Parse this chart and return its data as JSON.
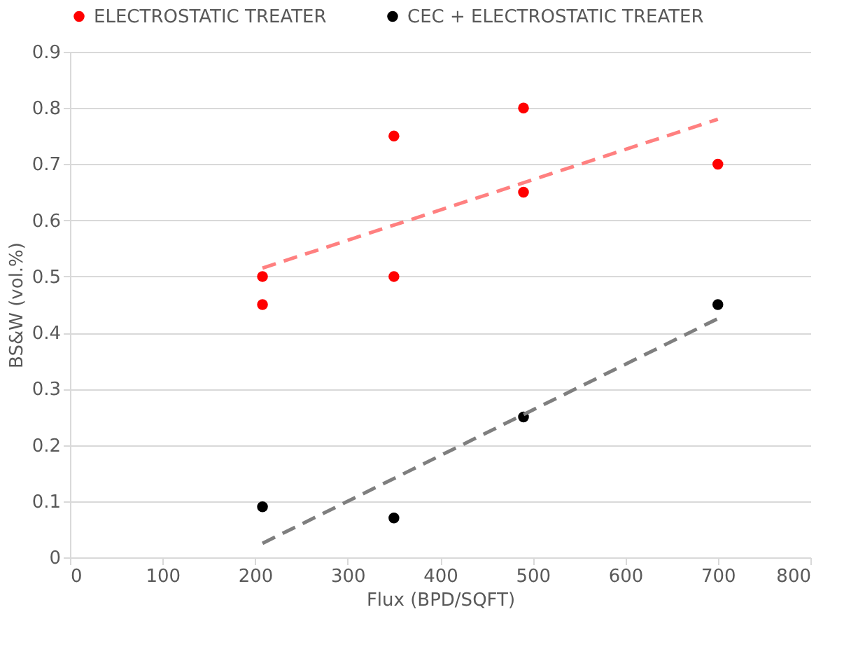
{
  "chart_data": {
    "type": "scatter",
    "xlabel": "Flux (BPD/SQFT)",
    "ylabel": "BS&W (vol.%)",
    "xlim": [
      0,
      800
    ],
    "xticks": [
      0,
      100,
      200,
      300,
      400,
      500,
      600,
      700,
      800
    ],
    "ylim": [
      0,
      0.9
    ],
    "yticks": [
      0,
      0.1,
      0.2,
      0.3,
      0.4,
      0.5,
      0.6,
      0.7,
      0.8,
      0.9
    ],
    "grid": "y",
    "legend": "top",
    "marker": "circle",
    "series": [
      {
        "name": "ELECTROSTATIC TREATER",
        "color": "#ff0000",
        "x": [
          208,
          208,
          350,
          350,
          490,
          490,
          700
        ],
        "values": [
          0.5,
          0.45,
          0.75,
          0.5,
          0.8,
          0.65,
          0.7
        ]
      },
      {
        "name": "CEC + ELECTROSTATIC TREATER",
        "color": "#000000",
        "x": [
          208,
          350,
          490,
          700
        ],
        "values": [
          0.09,
          0.07,
          0.25,
          0.45
        ]
      },
      {
        "type": "line",
        "marker": "none",
        "color": "#ff8080",
        "line_style": "dashed",
        "x": [
          208,
          700
        ],
        "values": [
          0.515,
          0.78
        ]
      },
      {
        "type": "line",
        "marker": "none",
        "color": "#7f7f7f",
        "line_style": "dashed",
        "x": [
          208,
          700
        ],
        "values": [
          0.025,
          0.425
        ]
      }
    ]
  }
}
